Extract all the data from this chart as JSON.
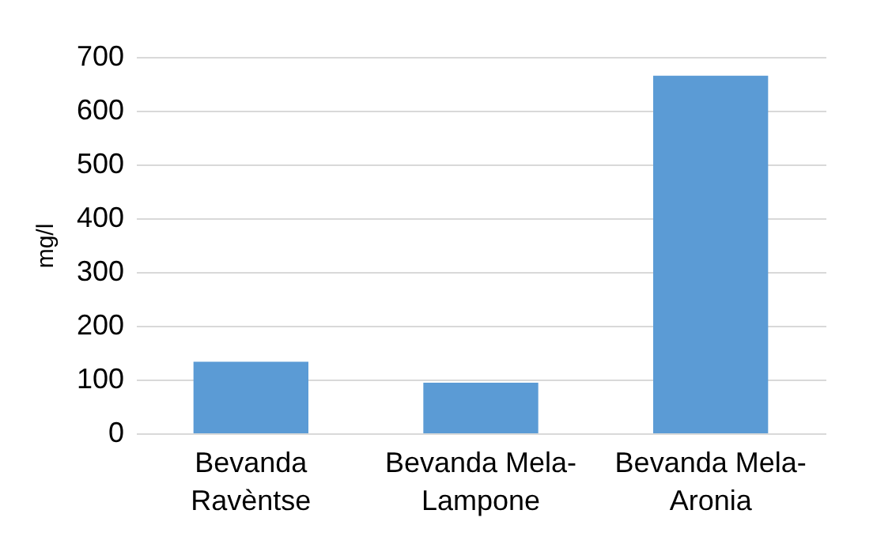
{
  "chart_data": {
    "type": "bar",
    "ylabel": "mg/l",
    "categories": [
      "Bevanda Ravèntse",
      "Bevanda Mela-Lampone",
      "Bevanda Mela-Aronia"
    ],
    "values": [
      133,
      94,
      665
    ],
    "color": "#5b9bd5",
    "ylim": [
      0,
      700
    ],
    "yticks": [
      0,
      100,
      200,
      300,
      400,
      500,
      600,
      700
    ],
    "grid": "y"
  }
}
